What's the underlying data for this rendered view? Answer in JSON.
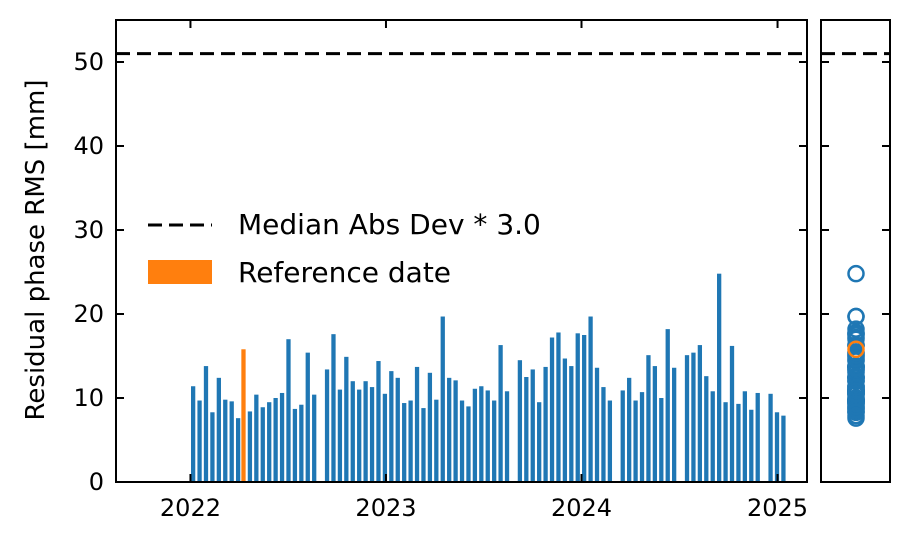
{
  "chart_data": {
    "type": "bar",
    "ylabel": "Residual phase RMS [mm]",
    "ylim": [
      0,
      55
    ],
    "xlim": [
      "2021-08-15",
      "2025-02-25"
    ],
    "x_ticks": [
      "2022",
      "2023",
      "2024",
      "2025"
    ],
    "y_ticks": [
      0,
      10,
      20,
      30,
      40,
      50
    ],
    "threshold": {
      "label": "Median Abs Dev * 3.0",
      "value": 51.0,
      "style": "dashed",
      "color": "#000000"
    },
    "legend": {
      "placement": "center-left",
      "entries": [
        {
          "label": "Median Abs Dev * 3.0",
          "kind": "line"
        },
        {
          "label": "Reference date",
          "kind": "patch",
          "color": "#ff7f0e"
        }
      ]
    },
    "reference_date": "2022-04-10",
    "colors": {
      "bar": "#1f77b4",
      "reference": "#ff7f0e"
    },
    "x": [
      "2022-01-06",
      "2022-01-18",
      "2022-01-30",
      "2022-02-11",
      "2022-02-23",
      "2022-03-07",
      "2022-03-19",
      "2022-03-31",
      "2022-04-10",
      "2022-04-22",
      "2022-05-04",
      "2022-05-16",
      "2022-05-28",
      "2022-06-09",
      "2022-06-21",
      "2022-07-03",
      "2022-07-15",
      "2022-07-27",
      "2022-08-08",
      "2022-08-20",
      "2022-09-13",
      "2022-09-25",
      "2022-10-07",
      "2022-10-19",
      "2022-10-31",
      "2022-11-12",
      "2022-11-24",
      "2022-12-06",
      "2022-12-18",
      "2022-12-30",
      "2023-01-11",
      "2023-01-23",
      "2023-02-04",
      "2023-02-16",
      "2023-02-28",
      "2023-03-12",
      "2023-03-24",
      "2023-04-05",
      "2023-04-17",
      "2023-04-29",
      "2023-05-11",
      "2023-05-23",
      "2023-06-04",
      "2023-06-16",
      "2023-06-28",
      "2023-07-10",
      "2023-07-22",
      "2023-08-03",
      "2023-08-15",
      "2023-09-08",
      "2023-09-20",
      "2023-10-02",
      "2023-10-14",
      "2023-10-26",
      "2023-11-07",
      "2023-11-19",
      "2023-12-01",
      "2023-12-13",
      "2023-12-25",
      "2024-01-06",
      "2024-01-18",
      "2024-01-30",
      "2024-02-11",
      "2024-02-23",
      "2024-03-18",
      "2024-03-30",
      "2024-04-11",
      "2024-04-23",
      "2024-05-05",
      "2024-05-17",
      "2024-05-29",
      "2024-06-10",
      "2024-06-22",
      "2024-07-16",
      "2024-07-28",
      "2024-08-09",
      "2024-08-21",
      "2024-09-02",
      "2024-09-14",
      "2024-09-26",
      "2024-10-08",
      "2024-10-20",
      "2024-11-01",
      "2024-11-13",
      "2024-11-25",
      "2024-12-19",
      "2024-12-31",
      "2025-01-12"
    ],
    "values": [
      11.4,
      9.7,
      13.8,
      8.3,
      12.4,
      9.8,
      9.6,
      7.6,
      15.8,
      8.4,
      10.4,
      8.9,
      9.5,
      10.0,
      10.6,
      17.0,
      8.7,
      9.2,
      15.4,
      10.4,
      13.4,
      17.6,
      11.0,
      14.9,
      12.0,
      11.0,
      12.0,
      11.3,
      14.4,
      10.5,
      13.2,
      12.4,
      9.4,
      9.7,
      13.7,
      8.8,
      13.0,
      9.8,
      19.7,
      12.4,
      12.1,
      9.7,
      9.0,
      11.1,
      11.4,
      10.9,
      9.7,
      16.3,
      10.8,
      14.5,
      12.5,
      13.4,
      9.5,
      13.7,
      17.2,
      17.8,
      14.7,
      13.8,
      17.7,
      17.5,
      19.7,
      13.6,
      11.3,
      9.7,
      10.9,
      12.4,
      9.7,
      10.7,
      15.1,
      13.8,
      10.0,
      18.2,
      13.6,
      15.1,
      15.4,
      16.3,
      12.6,
      10.8,
      24.8,
      9.5,
      16.2,
      9.3,
      10.8,
      8.6,
      10.6,
      10.5,
      8.3,
      7.9
    ],
    "scatter_panel": {
      "marker": "open-circle"
    }
  }
}
